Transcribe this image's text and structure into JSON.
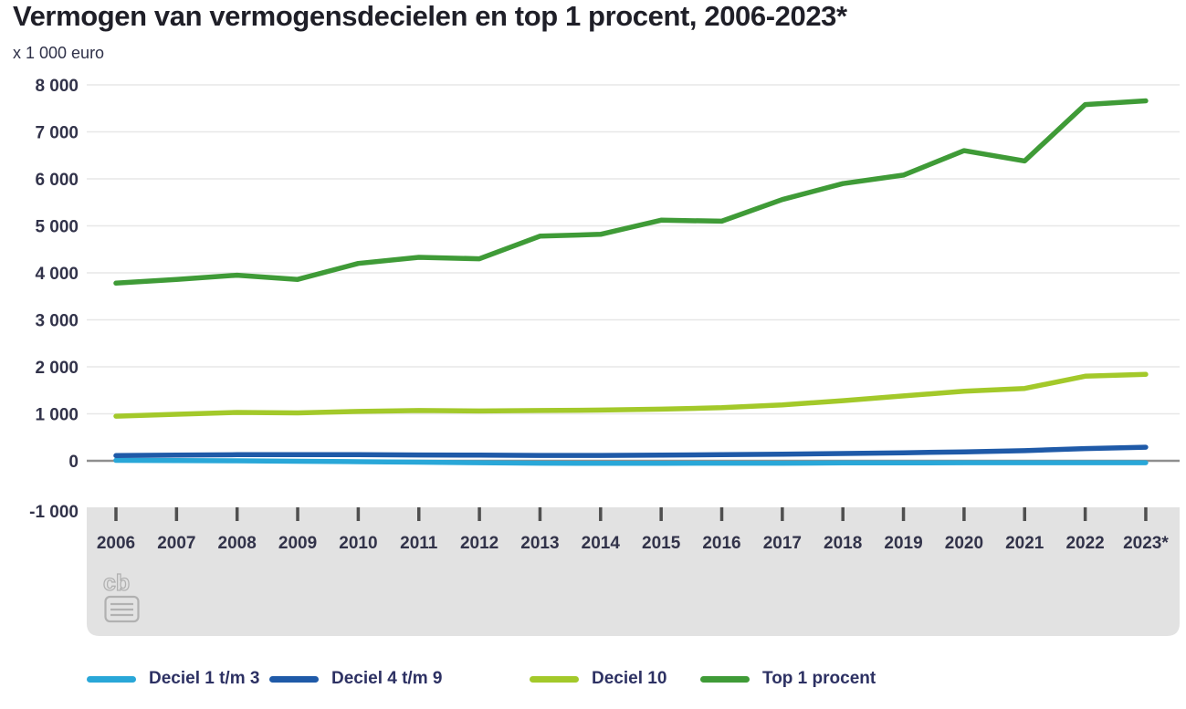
{
  "chart": {
    "title": "Vermogen van vermogensdecielen en top 1 procent, 2006-2023*",
    "unit_label": "x 1 000 euro"
  },
  "chart_data": {
    "type": "line",
    "title": "Vermogen van vermogensdecielen en top 1 procent, 2006-2023*",
    "ylabel": "x 1 000 euro",
    "xlabel": "",
    "ylim": [
      -1000,
      8000
    ],
    "grid": true,
    "legend_position": "bottom",
    "categories": [
      "2006",
      "2007",
      "2008",
      "2009",
      "2010",
      "2011",
      "2012",
      "2013",
      "2014",
      "2015",
      "2016",
      "2017",
      "2018",
      "2019",
      "2020",
      "2021",
      "2022",
      "2023*"
    ],
    "yticks": {
      "values": [
        8000,
        7000,
        6000,
        5000,
        4000,
        3000,
        2000,
        1000,
        0,
        -1000
      ],
      "labels": [
        "8 000",
        "7 000",
        "6 000",
        "5 000",
        "4 000",
        "3 000",
        "2 000",
        "1 000",
        "0",
        "-1 000"
      ]
    },
    "series": [
      {
        "name": "Deciel 1 t/m 3",
        "color": "#29a7d8",
        "values": [
          10,
          5,
          0,
          -10,
          -20,
          -30,
          -40,
          -50,
          -55,
          -55,
          -50,
          -50,
          -45,
          -45,
          -40,
          -40,
          -40,
          -40
        ]
      },
      {
        "name": "Deciel 4 t/m 9",
        "color": "#1f5aa8",
        "values": [
          110,
          120,
          130,
          130,
          130,
          125,
          120,
          115,
          115,
          120,
          130,
          140,
          155,
          170,
          190,
          215,
          260,
          290
        ]
      },
      {
        "name": "Deciel 10",
        "color": "#a3c92a",
        "values": [
          950,
          990,
          1030,
          1020,
          1050,
          1070,
          1060,
          1070,
          1080,
          1100,
          1130,
          1190,
          1280,
          1380,
          1480,
          1540,
          1800,
          1840
        ]
      },
      {
        "name": "Top 1 procent",
        "color": "#3f9b37",
        "values": [
          3780,
          3860,
          3950,
          3860,
          4200,
          4330,
          4300,
          4780,
          4820,
          5120,
          5100,
          5560,
          5900,
          6080,
          6600,
          6380,
          7580,
          7660
        ]
      }
    ]
  }
}
